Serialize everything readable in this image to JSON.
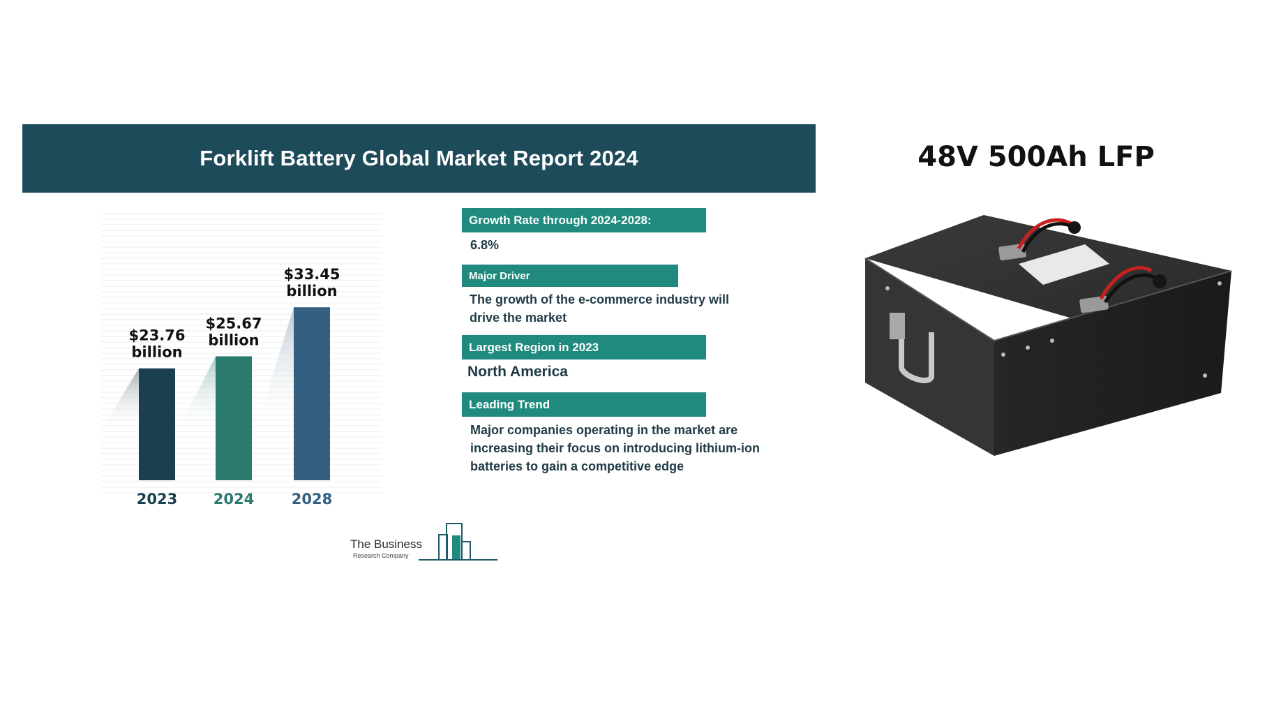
{
  "report": {
    "title": "Forklift Battery Global Market Report 2024"
  },
  "chart_data": {
    "type": "bar",
    "categories": [
      "2023",
      "2024",
      "2028"
    ],
    "values": [
      23.76,
      25.67,
      33.45
    ],
    "value_labels": [
      [
        "$23.76",
        "billion"
      ],
      [
        "$25.67",
        "billion"
      ],
      [
        "$33.45",
        "billion"
      ]
    ],
    "colors": [
      "#1a3f4e",
      "#2a7a6e",
      "#345f80"
    ],
    "title": "",
    "xlabel": "",
    "ylabel": "",
    "ylim": [
      0,
      40
    ],
    "grid": true
  },
  "info": {
    "growth_label": "Growth Rate through 2024-2028:",
    "growth_value": "6.8%",
    "driver_label": "Major Driver",
    "driver_text_1": "The growth of the e-commerce industry will",
    "driver_text_2": "drive the market",
    "region_label": "Largest Region in 2023",
    "region_value": "North America",
    "trend_label": "Leading Trend",
    "trend_text_1": "Major companies operating in the market are",
    "trend_text_2": "increasing their focus on introducing lithium-ion",
    "trend_text_3": "batteries to gain a competitive edge"
  },
  "logo": {
    "name": "The Business",
    "sub": "Research Company"
  },
  "product": {
    "title": "48V 500Ah LFP"
  },
  "colors": {
    "header_bg": "#1e4b59",
    "label_bg": "#1f8a7d",
    "text_dark": "#1f3a46"
  }
}
